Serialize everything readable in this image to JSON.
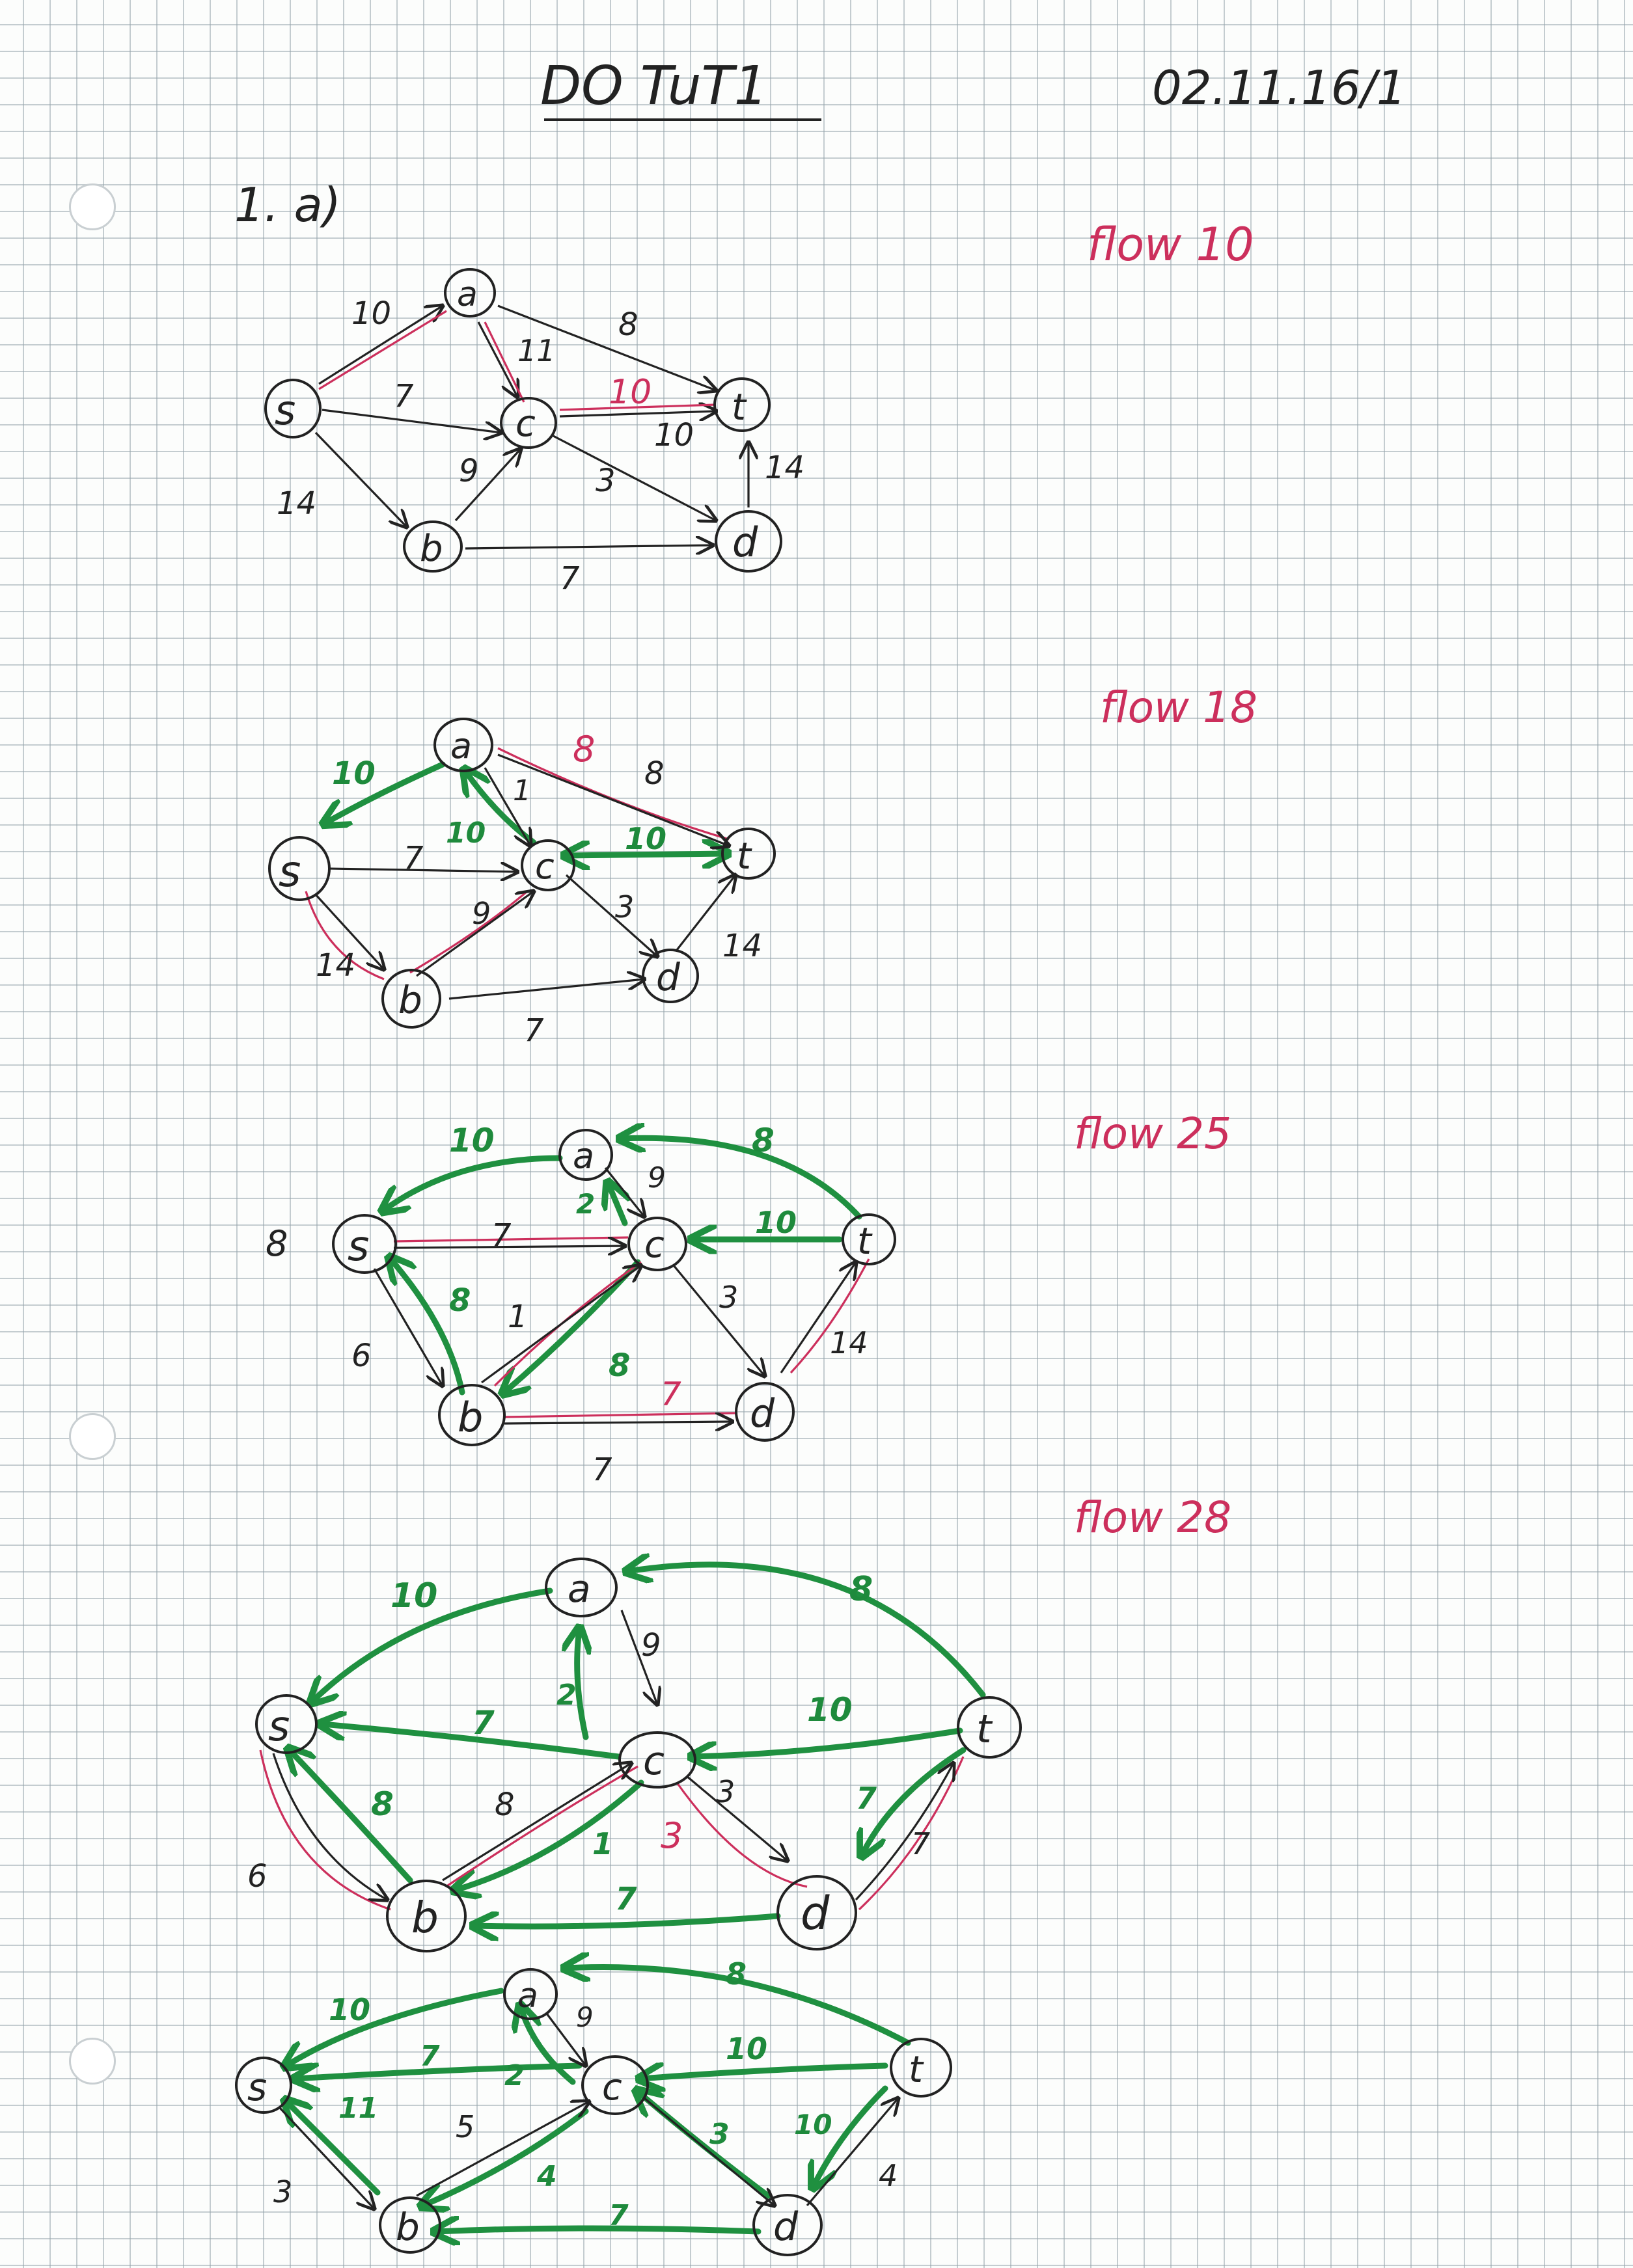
{
  "header": {
    "title": "DO TuT1",
    "date": "02.11.16/1"
  },
  "exercise": {
    "label": "1. a)"
  },
  "colors": {
    "ink": "#222222",
    "red": "#cc2f5c",
    "green": "#1f9040",
    "grid": "#96a5ac"
  },
  "diagrams": [
    {
      "flow_label": "flow 10",
      "nodes": [
        "s",
        "a",
        "c",
        "t",
        "b",
        "d"
      ],
      "edge_labels": [
        "10",
        "7",
        "14",
        "8",
        "11",
        "9",
        "3",
        "10",
        "10",
        "14",
        "7"
      ]
    },
    {
      "flow_label": "flow 18",
      "nodes": [
        "s",
        "a",
        "c",
        "t",
        "b",
        "d"
      ],
      "edge_labels": [
        "10",
        "8",
        "8",
        "1",
        "10",
        "7",
        "10",
        "9",
        "3",
        "14",
        "14",
        "7"
      ]
    },
    {
      "flow_label": "flow 25",
      "nodes": [
        "s",
        "a",
        "c",
        "t",
        "b",
        "d"
      ],
      "edge_labels": [
        "10",
        "8",
        "9",
        "2",
        "7",
        "10",
        "8",
        "8",
        "3",
        "1",
        "14",
        "6",
        "8",
        "7",
        "7"
      ]
    },
    {
      "flow_label": "flow 28",
      "nodes": [
        "s",
        "a",
        "c",
        "t",
        "b",
        "d"
      ],
      "edge_labels": [
        "10",
        "8",
        "9",
        "2",
        "7",
        "10",
        "8",
        "8",
        "3",
        "3",
        "1",
        "7",
        "7",
        "6",
        "7"
      ]
    },
    {
      "flow_label": "",
      "nodes": [
        "s",
        "a",
        "c",
        "t",
        "b",
        "d"
      ],
      "edge_labels": [
        "10",
        "8",
        "9",
        "7",
        "2",
        "10",
        "11",
        "5",
        "4",
        "3",
        "10",
        "3",
        "4",
        "7"
      ]
    }
  ]
}
